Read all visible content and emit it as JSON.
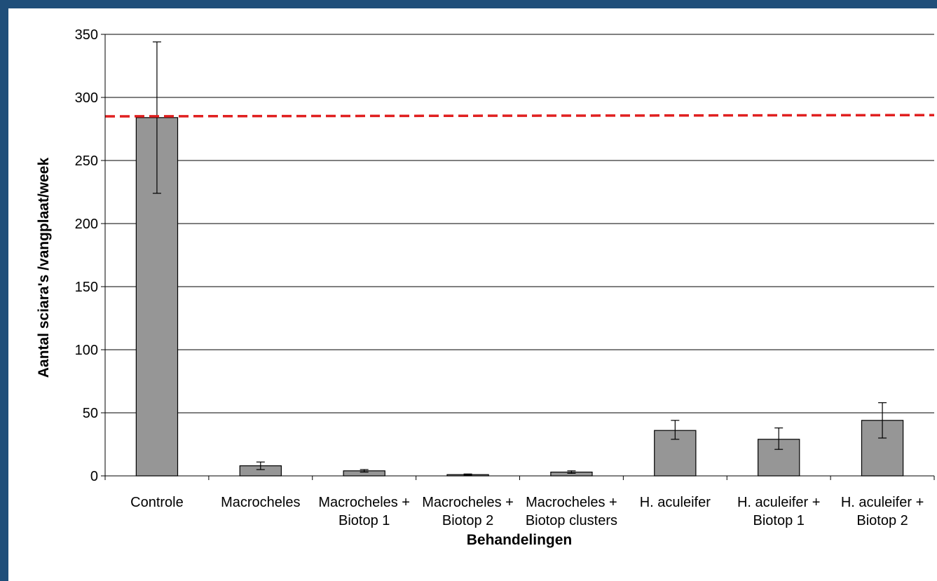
{
  "chart_data": {
    "type": "bar",
    "title": "",
    "xlabel": "Behandelingen",
    "ylabel": "Aantal sciara's /vangplaat/week",
    "ylim": [
      0,
      350
    ],
    "yticks": [
      0,
      50,
      100,
      150,
      200,
      250,
      300,
      350
    ],
    "ytick_labels": [
      "0",
      "50",
      "100",
      "150",
      "200",
      "250",
      "300",
      "350"
    ],
    "grid": "horizontal",
    "legend": "none",
    "categories": [
      [
        "Controle"
      ],
      [
        "Macrocheles"
      ],
      [
        "Macrocheles +",
        "Biotop 1"
      ],
      [
        "Macrocheles +",
        "Biotop 2"
      ],
      [
        "Macrocheles +",
        "Biotop clusters"
      ],
      [
        "H. aculeifer"
      ],
      [
        "H. aculeifer +",
        "Biotop 1"
      ],
      [
        "H. aculeifer +",
        "Biotop 2"
      ]
    ],
    "values": [
      284,
      8,
      4,
      1,
      3,
      36,
      29,
      44
    ],
    "error_low": [
      224,
      5,
      3,
      0.5,
      2,
      29,
      21,
      30
    ],
    "error_high": [
      344,
      11,
      5,
      1.5,
      4,
      44,
      38,
      58
    ],
    "reference_line": {
      "y_start": 285,
      "y_end": 286,
      "style": "dashed",
      "color": "#e02020"
    },
    "colors": {
      "bar": "#969696",
      "bar_edge": "#000000",
      "grid": "#000000",
      "background": "#1f4e79"
    }
  }
}
